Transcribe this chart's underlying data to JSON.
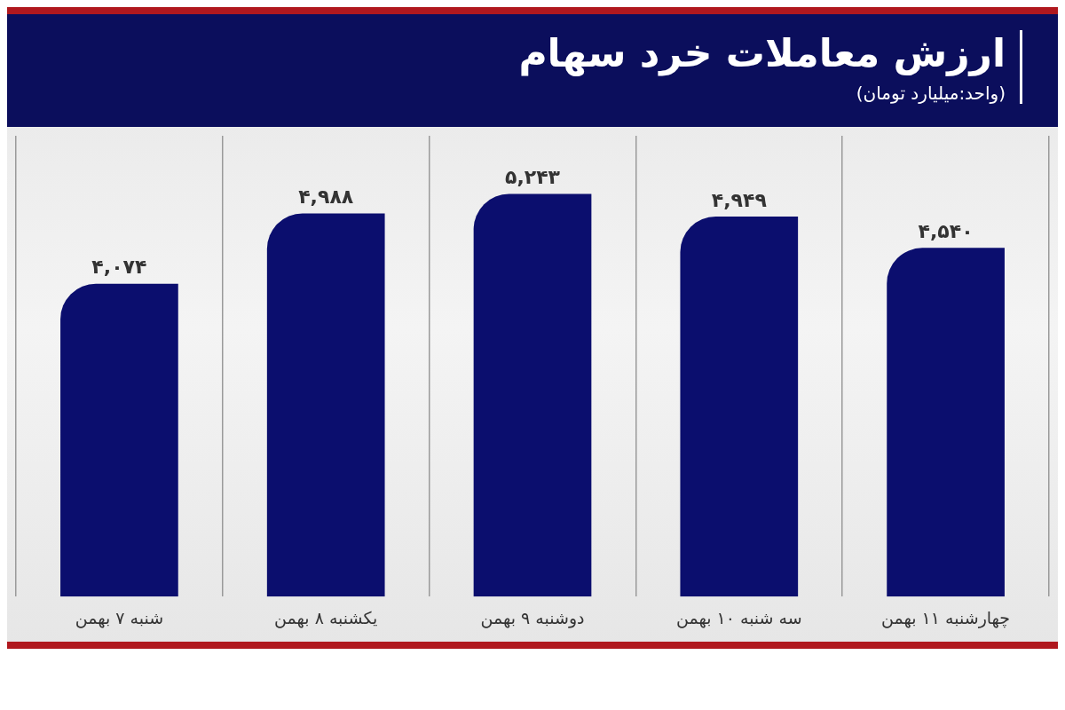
{
  "chart_data": {
    "type": "bar",
    "title": "ارزش معاملات خرد سهام",
    "subtitle": "(واحد:میلیارد تومان)",
    "categories": [
      "شنبه ۷ بهمن",
      "یکشنبه ۸ بهمن",
      "دوشنبه ۹ بهمن",
      "سه شنبه ۱۰ بهمن",
      "چهارشنبه ۱۱ بهمن"
    ],
    "values": [
      4074,
      4988,
      5243,
      4949,
      4540
    ],
    "value_labels": [
      "۴,۰۷۴",
      "۴,۹۸۸",
      "۵,۲۴۳",
      "۴,۹۴۹",
      "۴,۵۴۰"
    ],
    "color": "#0b0e6e",
    "grid": "x",
    "legend": false
  }
}
